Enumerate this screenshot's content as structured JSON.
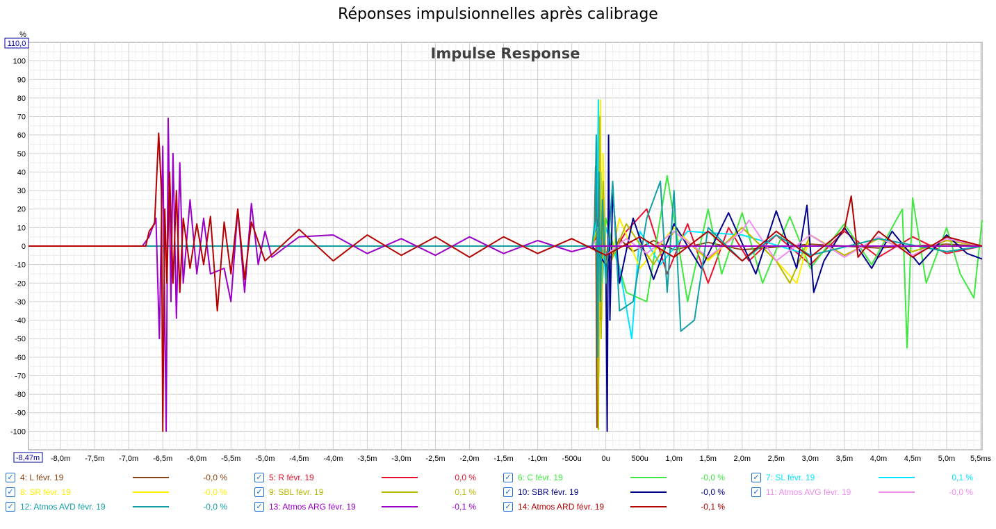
{
  "page_title": "Réponses impulsionnelles après calibrage",
  "chart_data": {
    "type": "line",
    "title": "Impulse Response",
    "ylabel": "%",
    "y_max_box": "110,0",
    "x_min_box": "-8,47m",
    "xlim": [
      -8.47,
      5.52
    ],
    "ylim": [
      -110,
      110
    ],
    "grid": true,
    "legend_position": "bottom",
    "y_ticks": [
      {
        "v": 100,
        "label": "100"
      },
      {
        "v": 90,
        "label": "90"
      },
      {
        "v": 80,
        "label": "80"
      },
      {
        "v": 70,
        "label": "70"
      },
      {
        "v": 60,
        "label": "60"
      },
      {
        "v": 50,
        "label": "50"
      },
      {
        "v": 40,
        "label": "40"
      },
      {
        "v": 30,
        "label": "30"
      },
      {
        "v": 20,
        "label": "20"
      },
      {
        "v": 10,
        "label": "10"
      },
      {
        "v": 0,
        "label": "0"
      },
      {
        "v": -10,
        "label": "-10"
      },
      {
        "v": -20,
        "label": "-20"
      },
      {
        "v": -30,
        "label": "-30"
      },
      {
        "v": -40,
        "label": "-40"
      },
      {
        "v": -50,
        "label": "-50"
      },
      {
        "v": -60,
        "label": "-60"
      },
      {
        "v": -70,
        "label": "-70"
      },
      {
        "v": -80,
        "label": "-80"
      },
      {
        "v": -90,
        "label": "-90"
      },
      {
        "v": -100,
        "label": "-100"
      }
    ],
    "x_ticks": [
      {
        "v": -8.0,
        "label": "-8,0m"
      },
      {
        "v": -7.5,
        "label": "-7,5m"
      },
      {
        "v": -7.0,
        "label": "-7,0m"
      },
      {
        "v": -6.5,
        "label": "-6,5m"
      },
      {
        "v": -6.0,
        "label": "-6,0m"
      },
      {
        "v": -5.5,
        "label": "-5,5m"
      },
      {
        "v": -5.0,
        "label": "-5,0m"
      },
      {
        "v": -4.5,
        "label": "-4,5m"
      },
      {
        "v": -4.0,
        "label": "-4,0m"
      },
      {
        "v": -3.5,
        "label": "-3,5m"
      },
      {
        "v": -3.0,
        "label": "-3,0m"
      },
      {
        "v": -2.5,
        "label": "-2,5m"
      },
      {
        "v": -2.0,
        "label": "-2,0m"
      },
      {
        "v": -1.5,
        "label": "-1,5m"
      },
      {
        "v": -1.0,
        "label": "-1,0m"
      },
      {
        "v": -0.5,
        "label": "-500u"
      },
      {
        "v": 0,
        "label": "0u"
      },
      {
        "v": 0.5,
        "label": "500u"
      },
      {
        "v": 1.0,
        "label": "1,0m"
      },
      {
        "v": 1.5,
        "label": "1,5m"
      },
      {
        "v": 2.0,
        "label": "2,0m"
      },
      {
        "v": 2.5,
        "label": "2,5m"
      },
      {
        "v": 3.0,
        "label": "3,0m"
      },
      {
        "v": 3.5,
        "label": "3,5m"
      },
      {
        "v": 4.0,
        "label": "4,0m"
      },
      {
        "v": 4.5,
        "label": "4,5m"
      },
      {
        "v": 5.0,
        "label": "5,0m"
      },
      {
        "v": 5.5,
        "label": "5,5ms"
      }
    ],
    "series": [
      {
        "name": "4: L févr. 19",
        "color": "#8b4513",
        "value_label": "-0,0 %",
        "x": [
          -8.47,
          -0.2,
          -0.17,
          -0.15,
          -0.13,
          -0.11,
          -0.09,
          -0.07,
          -0.05,
          -0.03,
          0.0,
          0.05,
          0.1,
          0.2,
          0.4,
          0.7,
          1.0,
          1.5,
          2.0,
          3.0,
          4.0,
          5.0,
          5.52
        ],
        "y": [
          0,
          0,
          5,
          43,
          -98,
          35,
          -40,
          22,
          -15,
          10,
          -8,
          6,
          -5,
          4,
          -3,
          3,
          -2,
          2,
          -2,
          1,
          -1,
          1,
          0
        ]
      },
      {
        "name": "5: R févr. 19",
        "color": "#e8112d",
        "value_label": "0,0 %",
        "x": [
          -8.47,
          -0.2,
          -0.14,
          -0.12,
          -0.1,
          -0.08,
          -0.06,
          -0.03,
          0.0,
          0.3,
          0.6,
          0.9,
          1.2,
          1.5,
          1.8,
          2.1,
          2.5,
          3.0,
          3.5,
          4.0,
          4.5,
          5.0,
          5.52
        ],
        "y": [
          0,
          0,
          6,
          30,
          -60,
          55,
          -30,
          20,
          -10,
          8,
          20,
          -15,
          12,
          -20,
          10,
          -8,
          6,
          -10,
          8,
          -6,
          5,
          -4,
          0
        ]
      },
      {
        "name": "6: C févr. 19",
        "color": "#3ee83e",
        "value_label": "-0,0 %",
        "x": [
          -8.47,
          -0.15,
          -0.1,
          -0.05,
          0.0,
          0.3,
          0.6,
          0.9,
          1.2,
          1.5,
          1.7,
          2.0,
          2.3,
          2.7,
          3.0,
          3.5,
          3.9,
          4.2,
          4.35,
          4.42,
          4.5,
          4.7,
          5.0,
          5.2,
          5.4,
          5.52
        ],
        "y": [
          0,
          0,
          10,
          -20,
          15,
          -25,
          -30,
          38,
          -30,
          20,
          -15,
          18,
          -20,
          16,
          -12,
          12,
          -10,
          10,
          20,
          -55,
          26,
          -20,
          10,
          -15,
          -28,
          14
        ]
      },
      {
        "name": "7: SL févr. 19",
        "color": "#00e5ff",
        "value_label": "0,1 %",
        "x": [
          -8.47,
          -0.2,
          -0.13,
          -0.11,
          -0.09,
          -0.07,
          -0.05,
          0.0,
          0.2,
          0.38,
          0.5,
          0.8,
          1.2,
          2.0,
          3.0,
          4.0,
          5.0,
          5.52
        ],
        "y": [
          0,
          0,
          15,
          79,
          -30,
          40,
          -20,
          10,
          -12,
          -50,
          8,
          -10,
          8,
          6,
          -5,
          4,
          -3,
          0
        ]
      },
      {
        "name": "8: SR févr. 19",
        "color": "#ffee00",
        "value_label": "-0,0 %",
        "x": [
          -8.47,
          -0.2,
          -0.12,
          -0.1,
          -0.08,
          -0.06,
          -0.04,
          0.0,
          0.2,
          0.5,
          1.0,
          1.5,
          2.0,
          2.5,
          2.8,
          3.0,
          3.5,
          4.0,
          4.5,
          5.0,
          5.52
        ],
        "y": [
          0,
          0,
          10,
          -70,
          79,
          -40,
          50,
          -20,
          15,
          -12,
          10,
          -8,
          10,
          -8,
          -20,
          6,
          -5,
          4,
          -3,
          3,
          0
        ]
      },
      {
        "name": "9: SBL févr. 19",
        "color": "#b8b800",
        "value_label": "0,1 %",
        "x": [
          -8.47,
          -0.2,
          -0.13,
          -0.11,
          -0.09,
          -0.07,
          -0.04,
          0.0,
          0.3,
          0.7,
          1.0,
          1.5,
          2.0,
          2.5,
          2.7,
          3.0,
          3.5,
          4.0,
          4.5,
          5.0,
          5.52
        ],
        "y": [
          0,
          0,
          8,
          -99,
          70,
          -50,
          35,
          -15,
          12,
          -10,
          8,
          -7,
          10,
          -8,
          -20,
          6,
          -5,
          4,
          -3,
          3,
          0
        ]
      },
      {
        "name": "10: SBR févr. 19",
        "color": "#00008b",
        "value_label": "-0,0 %",
        "x": [
          -8.47,
          -0.2,
          0.0,
          0.02,
          0.04,
          0.06,
          0.1,
          0.2,
          0.4,
          0.7,
          1.0,
          1.4,
          1.8,
          2.2,
          2.5,
          2.8,
          2.95,
          3.05,
          3.2,
          3.5,
          3.9,
          4.2,
          4.6,
          5.0,
          5.3,
          5.52
        ],
        "y": [
          0,
          0,
          -10,
          -100,
          60,
          -40,
          30,
          -20,
          15,
          -18,
          12,
          -12,
          18,
          -15,
          19,
          -12,
          22,
          -25,
          -8,
          10,
          -12,
          8,
          -10,
          6,
          -4,
          -7
        ]
      },
      {
        "name": "11: Atmos AVG févr. 19",
        "color": "#f08ef0",
        "value_label": "-0,0 %",
        "x": [
          -8.47,
          -0.2,
          -0.1,
          0.0,
          0.3,
          0.6,
          1.0,
          1.5,
          2.0,
          2.1,
          2.5,
          3.0,
          3.5,
          4.0,
          4.5,
          5.0,
          5.52
        ],
        "y": [
          0,
          0,
          5,
          -5,
          4,
          -4,
          8,
          -6,
          8,
          14,
          -8,
          6,
          -6,
          5,
          -5,
          4,
          0
        ]
      },
      {
        "name": "12: Atmos AVD févr. 19",
        "color": "#119fa3",
        "value_label": "-0,0 %",
        "x": [
          -8.47,
          -0.2,
          -0.16,
          -0.14,
          -0.12,
          -0.1,
          -0.08,
          -0.05,
          0.0,
          0.1,
          0.2,
          0.4,
          0.6,
          0.8,
          0.9,
          1.0,
          1.1,
          1.3,
          1.5,
          2.0,
          2.5,
          3.0,
          4.0,
          5.0,
          5.52
        ],
        "y": [
          0,
          0,
          15,
          60,
          -60,
          40,
          -30,
          25,
          -20,
          35,
          -35,
          -30,
          15,
          35,
          -25,
          30,
          -46,
          -40,
          10,
          -8,
          6,
          -5,
          4,
          -3,
          0
        ]
      },
      {
        "name": "13: Atmos ARG févr. 19",
        "color": "#9b00c8",
        "value_label": "-0,1 %",
        "x": [
          -8.47,
          -6.8,
          -6.7,
          -6.6,
          -6.55,
          -6.5,
          -6.45,
          -6.42,
          -6.38,
          -6.35,
          -6.3,
          -6.25,
          -6.2,
          -6.1,
          -6.0,
          -5.9,
          -5.8,
          -5.6,
          -5.5,
          -5.4,
          -5.3,
          -5.2,
          -5.1,
          -5.0,
          -4.9,
          -4.5,
          -4.0,
          -3.5,
          -3.0,
          -2.5,
          -2.0,
          -1.5,
          -1.0,
          -0.5,
          -0.2,
          5.52
        ],
        "y": [
          0,
          0,
          5,
          15,
          -50,
          54,
          -100,
          69,
          -30,
          50,
          -39,
          45,
          -20,
          25,
          -15,
          15,
          -15,
          -12,
          -30,
          20,
          -25,
          23,
          -10,
          8,
          -6,
          5,
          6,
          -4,
          4,
          -5,
          5,
          -4,
          3,
          -3,
          0,
          0
        ]
      },
      {
        "name": "14: Atmos ARD févr. 19",
        "color": "#b40000",
        "value_label": "-0,1 %",
        "x": [
          -8.47,
          -6.75,
          -6.7,
          -6.62,
          -6.56,
          -6.52,
          -6.5,
          -6.47,
          -6.44,
          -6.4,
          -6.35,
          -6.3,
          -6.25,
          -6.2,
          -6.1,
          -6.0,
          -5.9,
          -5.8,
          -5.7,
          -5.6,
          -5.5,
          -5.4,
          -5.3,
          -5.2,
          -5.0,
          -4.5,
          -4.0,
          -3.5,
          -3.0,
          -2.5,
          -2.0,
          -1.5,
          -1.0,
          -0.5,
          0.0,
          0.5,
          1.0,
          1.5,
          2.0,
          2.5,
          3.0,
          3.5,
          3.6,
          3.7,
          4.0,
          4.5,
          5.0,
          5.52
        ],
        "y": [
          0,
          0,
          8,
          12,
          61,
          30,
          -100,
          20,
          -20,
          40,
          -20,
          30,
          -25,
          15,
          -12,
          12,
          -10,
          16,
          -35,
          13,
          -15,
          20,
          -18,
          13,
          -8,
          9,
          -8,
          6,
          -5,
          5,
          -6,
          5,
          -4,
          4,
          -5,
          5,
          -6,
          8,
          -8,
          8,
          -6,
          9,
          27,
          -6,
          8,
          -6,
          5,
          0
        ]
      }
    ]
  }
}
